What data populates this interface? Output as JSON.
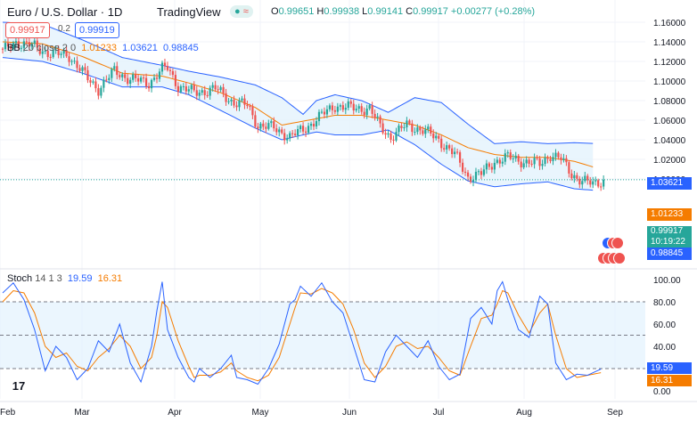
{
  "header": {
    "symbol": "Euro / U.S. Dollar",
    "interval": "1D",
    "brand": "TradingView",
    "brand_badge": "≈",
    "ohlc": {
      "o_label": "O",
      "o": "0.99651",
      "h_label": "H",
      "h": "0.99938",
      "l_label": "L",
      "l": "0.99141",
      "c_label": "C",
      "c": "0.99917",
      "change": "+0.00277 (+0.28%)"
    },
    "sell_price": "0.99917",
    "spread": "0.2",
    "buy_price": "0.99919"
  },
  "bb_legend": {
    "name": "BB",
    "params": "20 close 2 0",
    "basis": "1.01233",
    "upper": "1.03621",
    "lower": "0.98845"
  },
  "stoch_legend": {
    "name": "Stoch",
    "params": "14 1 3",
    "k": "19.59",
    "d": "16.31"
  },
  "price_tags": {
    "upper": "1.03621",
    "basis": "1.01233",
    "last": "0.99917",
    "countdown": "10:19:22",
    "lower": "0.98845"
  },
  "stoch_tags": {
    "k": "19.59",
    "d": "16.31"
  },
  "colors": {
    "up": "#26a69a",
    "down": "#ef5350",
    "basis": "#f57c00",
    "band": "#2962ff",
    "band_fill": "#e3f2fd",
    "k": "#2962ff",
    "d": "#f57c00",
    "stoch_fill": "#e3f2fd"
  },
  "chart_data": [
    {
      "type": "candlestick",
      "title": "Euro / U.S. Dollar",
      "interval": "1D",
      "x_tick_labels": [
        "Feb",
        "Mar",
        "Apr",
        "May",
        "Jun",
        "Jul",
        "Aug",
        "Sep"
      ],
      "y_tick_labels": [
        "1.16000",
        "1.14000",
        "1.12000",
        "1.10000",
        "1.08000",
        "1.06000",
        "1.04000",
        "1.02000",
        "1.00000"
      ],
      "ylim": [
        0.975,
        1.165
      ],
      "close_anchors": [
        [
          0,
          1.13
        ],
        [
          5,
          1.14
        ],
        [
          12,
          1.135
        ],
        [
          18,
          1.128
        ],
        [
          25,
          1.126
        ],
        [
          32,
          1.102
        ],
        [
          36,
          1.092
        ],
        [
          42,
          1.11
        ],
        [
          48,
          1.102
        ],
        [
          55,
          1.098
        ],
        [
          60,
          1.112
        ],
        [
          62,
          1.113
        ],
        [
          66,
          1.095
        ],
        [
          72,
          1.088
        ],
        [
          80,
          1.092
        ],
        [
          87,
          1.078
        ],
        [
          92,
          1.075
        ],
        [
          96,
          1.055
        ],
        [
          102,
          1.052
        ],
        [
          108,
          1.043
        ],
        [
          113,
          1.05
        ],
        [
          118,
          1.061
        ],
        [
          125,
          1.075
        ],
        [
          132,
          1.072
        ],
        [
          138,
          1.072
        ],
        [
          142,
          1.053
        ],
        [
          146,
          1.043
        ],
        [
          152,
          1.055
        ],
        [
          158,
          1.05
        ],
        [
          164,
          1.04
        ],
        [
          170,
          1.025
        ],
        [
          175,
          1.002
        ],
        [
          180,
          1.005
        ],
        [
          185,
          1.018
        ],
        [
          190,
          1.022
        ],
        [
          196,
          1.018
        ],
        [
          202,
          1.015
        ],
        [
          206,
          1.025
        ],
        [
          210,
          1.02
        ],
        [
          214,
          1.005
        ],
        [
          218,
          0.998
        ],
        [
          222,
          0.9945
        ],
        [
          226,
          0.99917
        ]
      ],
      "series": [
        {
          "name": "BB basis",
          "anchors": [
            [
              0,
              1.14
            ],
            [
              15,
              1.138
            ],
            [
              30,
              1.125
            ],
            [
              45,
              1.108
            ],
            [
              60,
              1.105
            ],
            [
              70,
              1.098
            ],
            [
              82,
              1.088
            ],
            [
              95,
              1.073
            ],
            [
              105,
              1.055
            ],
            [
              115,
              1.06
            ],
            [
              125,
              1.065
            ],
            [
              135,
              1.065
            ],
            [
              145,
              1.06
            ],
            [
              155,
              1.055
            ],
            [
              165,
              1.045
            ],
            [
              175,
              1.032
            ],
            [
              185,
              1.025
            ],
            [
              195,
              1.022
            ],
            [
              205,
              1.022
            ],
            [
              215,
              1.018
            ],
            [
              222,
              1.0123
            ]
          ]
        },
        {
          "name": "BB upper",
          "anchors": [
            [
              0,
              1.16
            ],
            [
              15,
              1.158
            ],
            [
              30,
              1.142
            ],
            [
              45,
              1.124
            ],
            [
              60,
              1.116
            ],
            [
              70,
              1.11
            ],
            [
              82,
              1.104
            ],
            [
              95,
              1.096
            ],
            [
              105,
              1.083
            ],
            [
              113,
              1.066
            ],
            [
              118,
              1.08
            ],
            [
              125,
              1.086
            ],
            [
              135,
              1.08
            ],
            [
              145,
              1.068
            ],
            [
              155,
              1.083
            ],
            [
              165,
              1.078
            ],
            [
              175,
              1.056
            ],
            [
              185,
              1.036
            ],
            [
              195,
              1.038
            ],
            [
              205,
              1.036
            ],
            [
              215,
              1.037
            ],
            [
              222,
              1.0362
            ]
          ]
        },
        {
          "name": "BB lower",
          "anchors": [
            [
              0,
              1.124
            ],
            [
              15,
              1.12
            ],
            [
              30,
              1.108
            ],
            [
              45,
              1.094
            ],
            [
              60,
              1.094
            ],
            [
              70,
              1.086
            ],
            [
              82,
              1.07
            ],
            [
              95,
              1.052
            ],
            [
              105,
              1.04
            ],
            [
              113,
              1.045
            ],
            [
              118,
              1.048
            ],
            [
              125,
              1.045
            ],
            [
              135,
              1.045
            ],
            [
              145,
              1.05
            ],
            [
              155,
              1.035
            ],
            [
              165,
              1.015
            ],
            [
              175,
              0.998
            ],
            [
              185,
              0.992
            ],
            [
              195,
              0.995
            ],
            [
              205,
              0.997
            ],
            [
              215,
              0.99
            ],
            [
              222,
              0.9885
            ]
          ]
        }
      ]
    },
    {
      "type": "line",
      "title": "Stoch 14 1 3",
      "y_tick_labels": [
        "100.00",
        "80.00",
        "60.00",
        "40.00",
        "20.00",
        "0.00"
      ],
      "ylim": [
        0,
        100
      ],
      "levels": [
        80,
        50,
        20
      ],
      "series": [
        {
          "name": "%K",
          "anchors": [
            [
              0,
              88
            ],
            [
              4,
              97
            ],
            [
              8,
              82
            ],
            [
              12,
              55
            ],
            [
              16,
              18
            ],
            [
              20,
              40
            ],
            [
              24,
              30
            ],
            [
              28,
              10
            ],
            [
              32,
              20
            ],
            [
              36,
              45
            ],
            [
              40,
              35
            ],
            [
              44,
              60
            ],
            [
              48,
              25
            ],
            [
              52,
              8
            ],
            [
              56,
              40
            ],
            [
              58,
              72
            ],
            [
              60,
              98
            ],
            [
              62,
              55
            ],
            [
              66,
              30
            ],
            [
              70,
              12
            ],
            [
              72,
              8
            ],
            [
              74,
              20
            ],
            [
              78,
              12
            ],
            [
              82,
              20
            ],
            [
              86,
              32
            ],
            [
              88,
              12
            ],
            [
              92,
              10
            ],
            [
              96,
              6
            ],
            [
              100,
              20
            ],
            [
              104,
              42
            ],
            [
              108,
              78
            ],
            [
              110,
              82
            ],
            [
              112,
              94
            ],
            [
              116,
              85
            ],
            [
              120,
              97
            ],
            [
              124,
              80
            ],
            [
              128,
              70
            ],
            [
              132,
              40
            ],
            [
              136,
              10
            ],
            [
              140,
              8
            ],
            [
              144,
              35
            ],
            [
              148,
              50
            ],
            [
              152,
              40
            ],
            [
              156,
              30
            ],
            [
              160,
              45
            ],
            [
              164,
              22
            ],
            [
              168,
              10
            ],
            [
              172,
              15
            ],
            [
              176,
              65
            ],
            [
              180,
              75
            ],
            [
              184,
              60
            ],
            [
              186,
              90
            ],
            [
              188,
              98
            ],
            [
              190,
              82
            ],
            [
              194,
              55
            ],
            [
              198,
              48
            ],
            [
              202,
              85
            ],
            [
              205,
              78
            ],
            [
              208,
              25
            ],
            [
              212,
              10
            ],
            [
              216,
              15
            ],
            [
              220,
              14
            ],
            [
              225,
              19.59
            ]
          ]
        },
        {
          "name": "%D",
          "anchors": [
            [
              0,
              80
            ],
            [
              4,
              90
            ],
            [
              8,
              88
            ],
            [
              12,
              70
            ],
            [
              16,
              40
            ],
            [
              20,
              30
            ],
            [
              24,
              34
            ],
            [
              28,
              22
            ],
            [
              32,
              18
            ],
            [
              36,
              30
            ],
            [
              40,
              38
            ],
            [
              44,
              50
            ],
            [
              48,
              40
            ],
            [
              52,
              20
            ],
            [
              56,
              30
            ],
            [
              58,
              50
            ],
            [
              60,
              80
            ],
            [
              62,
              75
            ],
            [
              66,
              45
            ],
            [
              70,
              22
            ],
            [
              72,
              12
            ],
            [
              74,
              14
            ],
            [
              78,
              14
            ],
            [
              82,
              17
            ],
            [
              86,
              25
            ],
            [
              88,
              18
            ],
            [
              92,
              12
            ],
            [
              96,
              9
            ],
            [
              100,
              14
            ],
            [
              104,
              30
            ],
            [
              108,
              60
            ],
            [
              110,
              75
            ],
            [
              112,
              88
            ],
            [
              116,
              87
            ],
            [
              120,
              92
            ],
            [
              124,
              88
            ],
            [
              128,
              78
            ],
            [
              132,
              55
            ],
            [
              136,
              25
            ],
            [
              140,
              12
            ],
            [
              144,
              22
            ],
            [
              148,
              40
            ],
            [
              152,
              44
            ],
            [
              156,
              38
            ],
            [
              160,
              40
            ],
            [
              164,
              30
            ],
            [
              168,
              18
            ],
            [
              172,
              14
            ],
            [
              176,
              40
            ],
            [
              180,
              65
            ],
            [
              184,
              68
            ],
            [
              186,
              78
            ],
            [
              188,
              90
            ],
            [
              190,
              88
            ],
            [
              194,
              68
            ],
            [
              198,
              52
            ],
            [
              202,
              70
            ],
            [
              205,
              78
            ],
            [
              208,
              50
            ],
            [
              212,
              20
            ],
            [
              216,
              12
            ],
            [
              220,
              14
            ],
            [
              225,
              16.31
            ]
          ]
        }
      ]
    }
  ]
}
